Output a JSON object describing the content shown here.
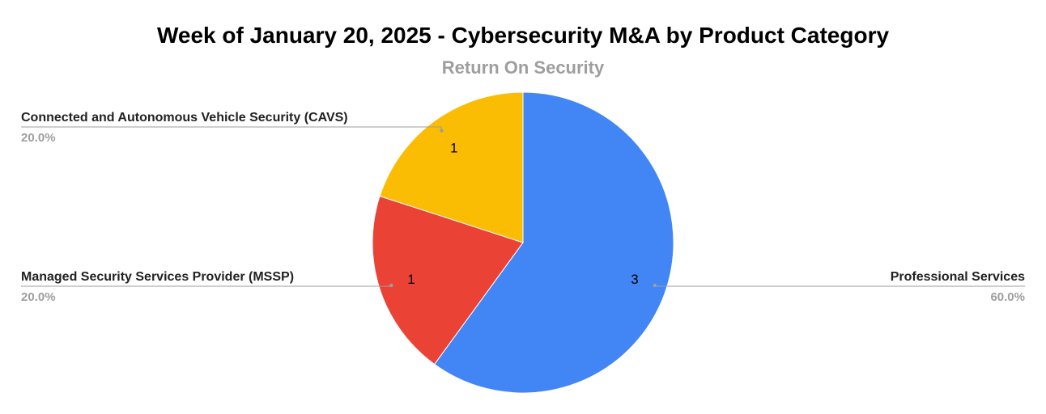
{
  "chart_data": {
    "type": "pie",
    "title": "Week of January 20, 2025 - Cybersecurity M&A by Product Category",
    "subtitle": "Return On Security",
    "slices": [
      {
        "label": "Professional Services",
        "value": 3,
        "percent": "60.0%",
        "color": "#4285f4",
        "label_side": "right"
      },
      {
        "label": "Managed Security Services Provider (MSSP)",
        "value": 1,
        "percent": "20.0%",
        "color": "#ea4335",
        "label_side": "left"
      },
      {
        "label": "Connected and Autonomous Vehicle Security (CAVS)",
        "value": 1,
        "percent": "20.0%",
        "color": "#fbbc04",
        "label_side": "left"
      }
    ]
  }
}
